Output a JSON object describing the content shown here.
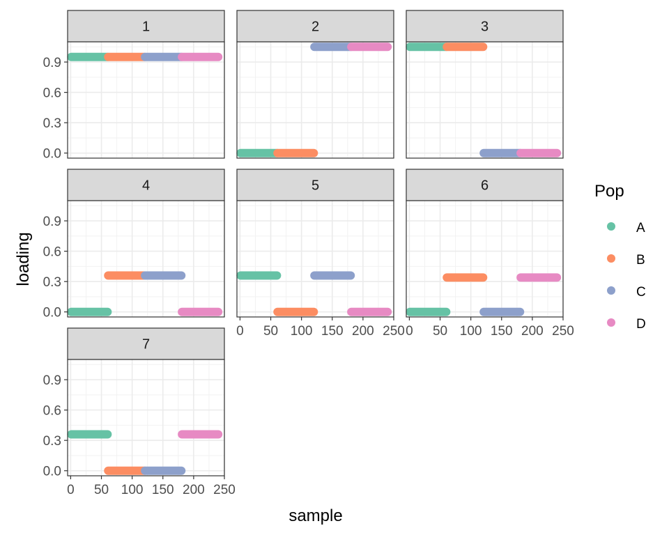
{
  "chart_data": {
    "type": "scatter",
    "facet_by": "panel",
    "facets": [
      "1",
      "2",
      "3",
      "4",
      "5",
      "6",
      "7"
    ],
    "xlabel": "sample",
    "ylabel": "loading",
    "xlim": [
      -5,
      250
    ],
    "ylim": [
      -0.05,
      1.1
    ],
    "x_ticks": [
      0,
      50,
      100,
      150,
      200,
      250
    ],
    "x_tick_labels": [
      "0",
      "50",
      "100",
      "150",
      "200",
      "250"
    ],
    "y_ticks": [
      0.0,
      0.3,
      0.6,
      0.9
    ],
    "y_tick_labels": [
      "0.0",
      "0.3",
      "0.6",
      "0.9"
    ],
    "legend": {
      "title": "Pop",
      "position": "right"
    },
    "grid": true,
    "groups": [
      {
        "name": "A",
        "color": "#66c2a5",
        "x_range": [
          1,
          60
        ]
      },
      {
        "name": "B",
        "color": "#fc8d62",
        "x_range": [
          61,
          120
        ]
      },
      {
        "name": "C",
        "color": "#8da0cb",
        "x_range": [
          121,
          180
        ]
      },
      {
        "name": "D",
        "color": "#e78ac3",
        "x_range": [
          181,
          240
        ]
      }
    ],
    "loadings": {
      "1": {
        "A": 0.95,
        "B": 0.95,
        "C": 0.95,
        "D": 0.95
      },
      "2": {
        "A": 0.0,
        "B": 0.0,
        "C": 1.05,
        "D": 1.05
      },
      "3": {
        "A": 1.05,
        "B": 1.05,
        "C": 0.0,
        "D": 0.0
      },
      "4": {
        "A": 0.0,
        "B": 0.36,
        "C": 0.36,
        "D": 0.0
      },
      "5": {
        "A": 0.36,
        "B": 0.0,
        "C": 0.36,
        "D": 0.0
      },
      "6": {
        "A": 0.0,
        "B": 0.34,
        "C": 0.0,
        "D": 0.34
      },
      "7": {
        "A": 0.36,
        "B": 0.0,
        "C": 0.0,
        "D": 0.36
      }
    }
  }
}
